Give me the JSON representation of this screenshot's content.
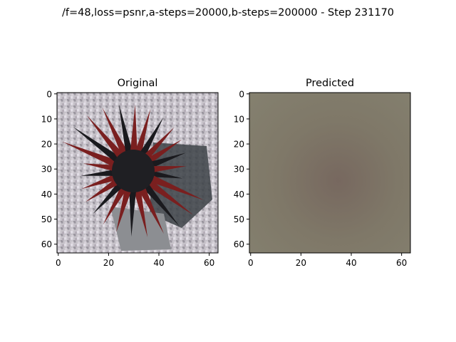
{
  "figure": {
    "suptitle": "/f=48,loss=psnr,a-steps=20000,b-steps=200000 - Step 231170"
  },
  "chart_data": [
    {
      "type": "heatmap",
      "title": "Original",
      "xlim": [
        0,
        63
      ],
      "ylim": [
        0,
        63
      ],
      "y_inverted": true,
      "x_ticks": [
        0,
        20,
        40,
        60
      ],
      "y_ticks": [
        0,
        10,
        20,
        30,
        40,
        50,
        60
      ],
      "xlabel": "",
      "ylabel": "",
      "image_description": "64x64 pixel photo of a dark red and black spiny sea urchin on a light gray speckled sand background",
      "colors": {
        "background": "#c4c0c8",
        "spine": "#7a1f1f",
        "spine_dark": "#1a1a1e",
        "center": "#202024"
      }
    },
    {
      "type": "heatmap",
      "title": "Predicted",
      "xlim": [
        0,
        63
      ],
      "ylim": [
        0,
        63
      ],
      "y_inverted": true,
      "x_ticks": [
        0,
        20,
        40,
        60
      ],
      "y_ticks": [
        0,
        10,
        20,
        30,
        40,
        50,
        60
      ],
      "xlabel": "",
      "ylabel": "",
      "image_description": "nearly uniform blurry gray-brown prediction",
      "colors": {
        "base": "#7f7868",
        "center_shade": "#77685f",
        "edge": "#84806f"
      }
    }
  ]
}
